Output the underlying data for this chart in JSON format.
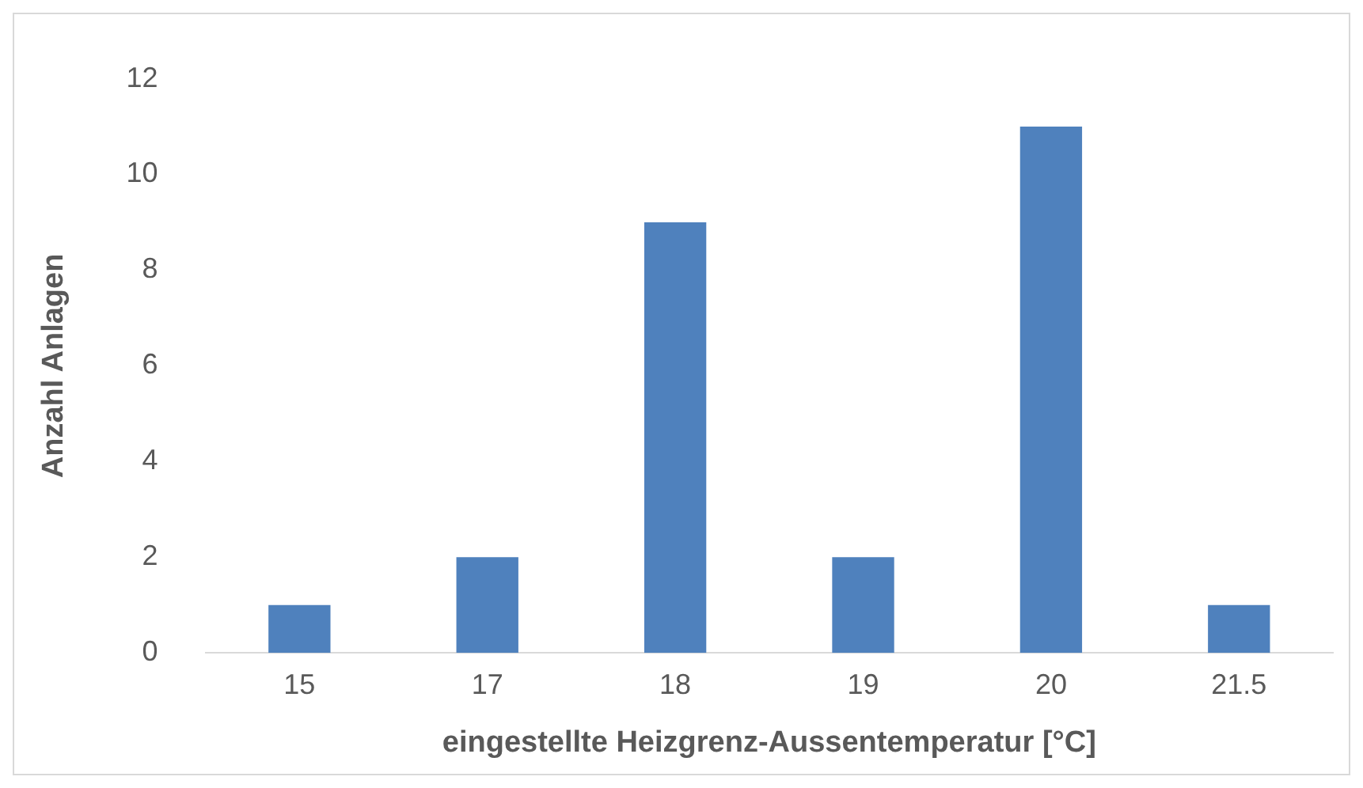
{
  "chart_data": {
    "type": "bar",
    "xlabel": "eingestellte Heizgrenz-Aussentemperatur [°C]",
    "ylabel": "Anzahl Anlagen",
    "categories": [
      "15",
      "17",
      "18",
      "19",
      "20",
      "21.5"
    ],
    "values": [
      1,
      2,
      9,
      2,
      11,
      1
    ],
    "color": "#4f81bd",
    "ylim": [
      0,
      12
    ],
    "yticks": [
      0,
      2,
      4,
      6,
      8,
      10,
      12
    ],
    "grid": false,
    "legend": false
  }
}
